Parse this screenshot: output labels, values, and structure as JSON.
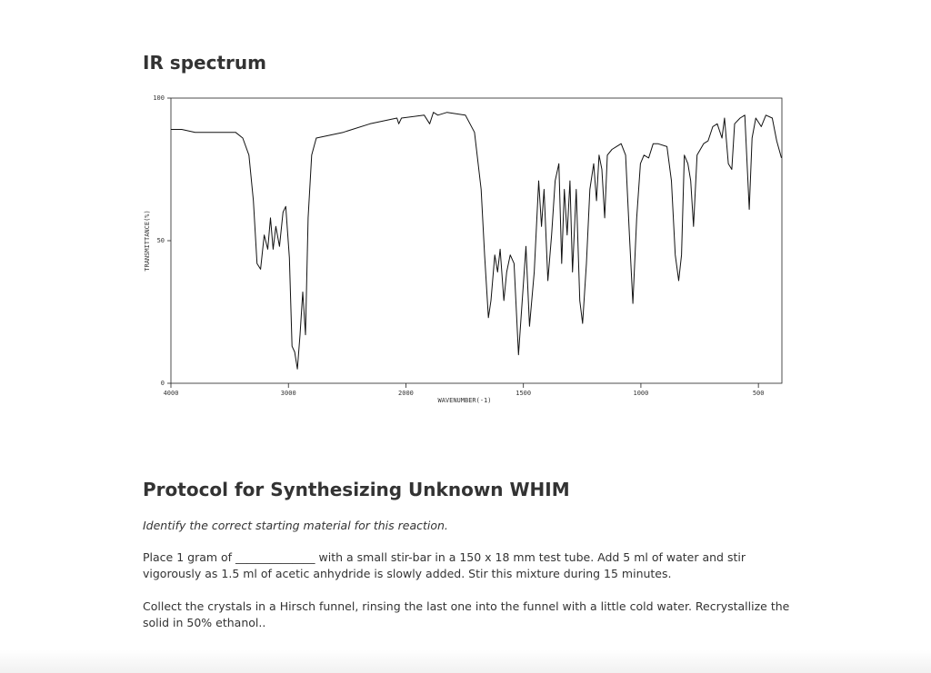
{
  "heading": "IR spectrum",
  "chart_data": {
    "type": "line",
    "ylabel": "TRANSMITTANCE(%)",
    "xlabel": "WAVENUMBER(-1)",
    "xlim": [
      4000,
      400
    ],
    "x_scale_break": 2000,
    "xticks": [
      4000,
      3000,
      2000,
      1500,
      1000,
      500
    ],
    "ylim": [
      0,
      100
    ],
    "yticks": [
      0,
      50,
      100
    ],
    "color": "#111111",
    "x": [
      4000,
      3908,
      3794,
      3450,
      3389,
      3336,
      3298,
      3267,
      3237,
      3206,
      3176,
      3153,
      3130,
      3107,
      3076,
      3046,
      3023,
      2992,
      2969,
      2947,
      2924,
      2901,
      2878,
      2855,
      2832,
      2802,
      2763,
      2534,
      2305,
      2076,
      2061,
      2038,
      1922,
      1899,
      1883,
      1864,
      1825,
      1747,
      1708,
      1680,
      1665,
      1649,
      1638,
      1622,
      1610,
      1599,
      1583,
      1571,
      1556,
      1540,
      1521,
      1505,
      1489,
      1474,
      1454,
      1435,
      1423,
      1412,
      1396,
      1380,
      1365,
      1349,
      1337,
      1326,
      1314,
      1302,
      1291,
      1275,
      1260,
      1248,
      1232,
      1217,
      1201,
      1189,
      1178,
      1166,
      1154,
      1143,
      1123,
      1104,
      1084,
      1065,
      1049,
      1034,
      1018,
      1002,
      987,
      967,
      948,
      928,
      889,
      870,
      854,
      839,
      827,
      815,
      800,
      788,
      776,
      761,
      733,
      714,
      694,
      675,
      655,
      644,
      628,
      613,
      601,
      578,
      558,
      539,
      527,
      511,
      488,
      468,
      441,
      422,
      402
    ],
    "values": [
      89,
      89,
      88,
      88,
      86,
      80,
      64,
      42,
      40,
      52,
      47,
      58,
      47,
      55,
      48,
      60,
      62,
      44,
      13,
      11,
      5,
      17,
      32,
      17,
      58,
      80,
      86,
      88,
      91,
      93,
      91,
      93,
      94,
      91,
      95,
      94,
      95,
      94,
      88,
      68,
      45,
      23,
      29,
      45,
      39,
      47,
      29,
      39,
      45,
      42,
      10,
      29,
      48,
      20,
      39,
      71,
      55,
      68,
      36,
      52,
      71,
      77,
      42,
      68,
      52,
      71,
      39,
      68,
      29,
      21,
      42,
      68,
      77,
      64,
      80,
      75,
      58,
      80,
      82,
      83,
      84,
      80,
      52,
      28,
      58,
      77,
      80,
      79,
      84,
      84,
      83,
      71,
      45,
      36,
      45,
      80,
      77,
      71,
      55,
      80,
      84,
      85,
      90,
      91,
      86,
      93,
      77,
      75,
      91,
      93,
      94,
      61,
      86,
      93,
      90,
      94,
      93,
      85,
      79
    ]
  },
  "protocol": {
    "title": "Protocol for Synthesizing Unknown WHIM",
    "instruction": "Identify the correct starting material for this reaction.",
    "paragraphs": [
      "Place 1 gram of ______________ with a small stir-bar in a 150 x 18 mm test tube. Add 5 ml of water and stir vigorously as 1.5 ml of acetic anhydride is slowly added. Stir this mixture during 15 minutes.",
      "Collect the crystals in a Hirsch funnel, rinsing the last one into the funnel with a little cold water. Recrystallize the solid in 50% ethanol.."
    ]
  }
}
